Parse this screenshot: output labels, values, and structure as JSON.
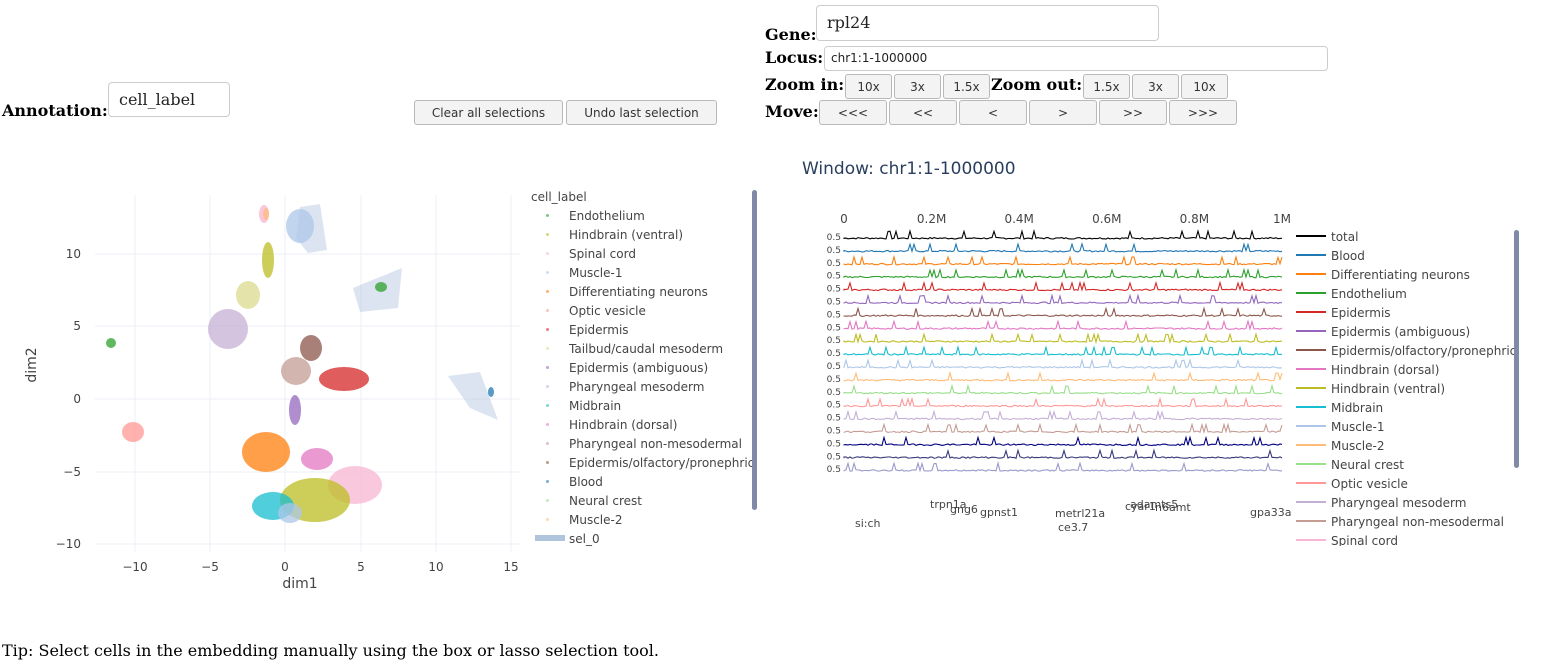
{
  "controls": {
    "annotation_label": "Annotation:",
    "annotation_value": "cell_label",
    "clear_button": "Clear all selections",
    "undo_button": "Undo last selection",
    "gene_label": "Gene:",
    "gene_value": "rpl24",
    "locus_label": "Locus:",
    "locus_value": "chr1:1-1000000",
    "zoom_in_label": "Zoom in:",
    "zoom_in_buttons": [
      "10x",
      "3x",
      "1.5x"
    ],
    "zoom_out_label": "Zoom out:",
    "zoom_out_buttons": [
      "1.5x",
      "3x",
      "10x"
    ],
    "move_label": "Move:",
    "move_buttons": [
      "<<<",
      "<<",
      "<",
      ">",
      ">>",
      ">>>"
    ]
  },
  "embedding": {
    "xlabel": "dim1",
    "ylabel": "dim2",
    "xticks": [
      "−10",
      "−5",
      "0",
      "5",
      "10",
      "15"
    ],
    "yticks": [
      "10",
      "5",
      "0",
      "−5",
      "−10"
    ],
    "legend_title": "cell_label",
    "legend_items": [
      {
        "name": "Endothelium",
        "color": "#2ca02c"
      },
      {
        "name": "Hindbrain (ventral)",
        "color": "#bcbd22"
      },
      {
        "name": "Spinal cord",
        "color": "#f7b6d2"
      },
      {
        "name": "Muscle-1",
        "color": "#aec7e8"
      },
      {
        "name": "Differentiating neurons",
        "color": "#ff7f0e"
      },
      {
        "name": "Optic vesicle",
        "color": "#ff9896"
      },
      {
        "name": "Epidermis",
        "color": "#d62728"
      },
      {
        "name": "Tailbud/caudal mesoderm",
        "color": "#dbdb8d"
      },
      {
        "name": "Epidermis (ambiguous)",
        "color": "#9467bd"
      },
      {
        "name": "Pharyngeal mesoderm",
        "color": "#c5b0d5"
      },
      {
        "name": "Midbrain",
        "color": "#17becf"
      },
      {
        "name": "Hindbrain (dorsal)",
        "color": "#e377c2"
      },
      {
        "name": "Pharyngeal non-mesodermal",
        "color": "#c49c94"
      },
      {
        "name": "Epidermis/olfactory/pronephric",
        "color": "#8c564b"
      },
      {
        "name": "Blood",
        "color": "#1f77b4"
      },
      {
        "name": "Neural crest",
        "color": "#98df8a"
      },
      {
        "name": "Muscle-2",
        "color": "#ffbb78"
      },
      {
        "name": "sel_0",
        "color": "#b0c4de"
      }
    ]
  },
  "tracks": {
    "window_title": "Window: chr1:1-1000000",
    "xticks": [
      "0",
      "0.2M",
      "0.4M",
      "0.6M",
      "0.8M",
      "1M"
    ],
    "ytick_label": "0.5",
    "legend_items": [
      {
        "name": "total",
        "color": "#000000"
      },
      {
        "name": "Blood",
        "color": "#1f77b4"
      },
      {
        "name": "Differentiating neurons",
        "color": "#ff7f0e"
      },
      {
        "name": "Endothelium",
        "color": "#2ca02c"
      },
      {
        "name": "Epidermis",
        "color": "#d62728"
      },
      {
        "name": "Epidermis (ambiguous)",
        "color": "#9467bd"
      },
      {
        "name": "Epidermis/olfactory/pronephric",
        "color": "#8c564b"
      },
      {
        "name": "Hindbrain (dorsal)",
        "color": "#e377c2"
      },
      {
        "name": "Hindbrain (ventral)",
        "color": "#bcbd22"
      },
      {
        "name": "Midbrain",
        "color": "#17becf"
      },
      {
        "name": "Muscle-1",
        "color": "#aec7e8"
      },
      {
        "name": "Muscle-2",
        "color": "#ffbb78"
      },
      {
        "name": "Neural crest",
        "color": "#98df8a"
      },
      {
        "name": "Optic vesicle",
        "color": "#ff9896"
      },
      {
        "name": "Pharyngeal mesoderm",
        "color": "#c5b0d5"
      },
      {
        "name": "Pharyngeal non-mesodermal",
        "color": "#c49c94"
      },
      {
        "name": "Spinal cord",
        "color": "#f7b6d2"
      }
    ],
    "track_colors": [
      "#000000",
      "#1f77b4",
      "#ff7f0e",
      "#2ca02c",
      "#d62728",
      "#9467bd",
      "#8c564b",
      "#e377c2",
      "#bcbd22",
      "#17becf",
      "#aec7e8",
      "#ffbb78",
      "#98df8a",
      "#ff9896",
      "#c5b0d5",
      "#c49c94",
      "#000080",
      "#393b79",
      "#9a9acc"
    ],
    "gene_labels": [
      "trpn1a",
      "gng6",
      "gpnst1",
      "metrl21a",
      "cyar1",
      "adamts5",
      "n6amt",
      "gpa33a",
      "si:ch",
      "ce3.7"
    ]
  },
  "tip": "Tip: Select cells in the embedding manually using the box or lasso selection tool."
}
